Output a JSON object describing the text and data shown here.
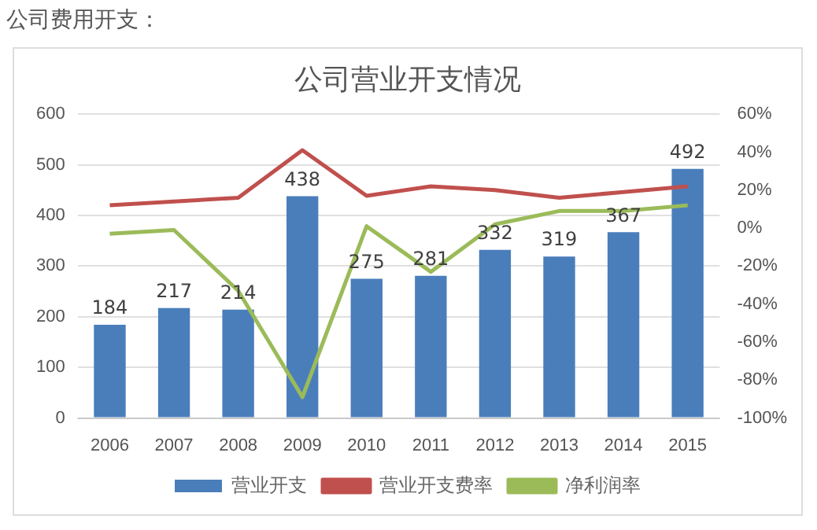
{
  "chart_data": {
    "type": "bar",
    "title": "公司营业开支情况",
    "annotations": [
      "公司费用开支："
    ],
    "categories": [
      "2006",
      "2007",
      "2008",
      "2009",
      "2010",
      "2011",
      "2012",
      "2013",
      "2014",
      "2015"
    ],
    "series": [
      {
        "name": "营业开支",
        "color": "#4a7ebb",
        "values": [
          184,
          217,
          214,
          438,
          275,
          281,
          332,
          319,
          367,
          492
        ],
        "value_labels": [
          "184",
          "217",
          "214",
          "438",
          "275",
          "281",
          "332",
          "319",
          "367",
          "492"
        ]
      },
      {
        "name": "营业开支费率",
        "type": "line",
        "axis": "y2",
        "color": "#c0504d",
        "values": [
          12,
          14,
          16,
          41,
          17,
          22,
          20,
          16,
          19,
          22
        ]
      },
      {
        "name": "净利润率",
        "type": "line",
        "axis": "y2",
        "color": "#9bbb59",
        "values": [
          -3,
          -1,
          -33,
          -89,
          1,
          -23,
          2,
          9,
          9,
          12
        ]
      }
    ],
    "ylim": [
      0,
      600
    ],
    "yticks": [
      0,
      100,
      200,
      300,
      400,
      500,
      600
    ],
    "y2lim": [
      -100,
      60
    ],
    "y2ticks": [
      {
        "value": -100,
        "label": "-100%"
      },
      {
        "value": -80,
        "label": "-80%"
      },
      {
        "value": -60,
        "label": "-60%"
      },
      {
        "value": -40,
        "label": "-40%"
      },
      {
        "value": -20,
        "label": "-20%"
      },
      {
        "value": 0,
        "label": "0%"
      },
      {
        "value": 20,
        "label": "20%"
      },
      {
        "value": 40,
        "label": "40%"
      },
      {
        "value": 60,
        "label": "60%"
      }
    ],
    "grid": "y",
    "legend": "bottom",
    "marker": "none"
  }
}
